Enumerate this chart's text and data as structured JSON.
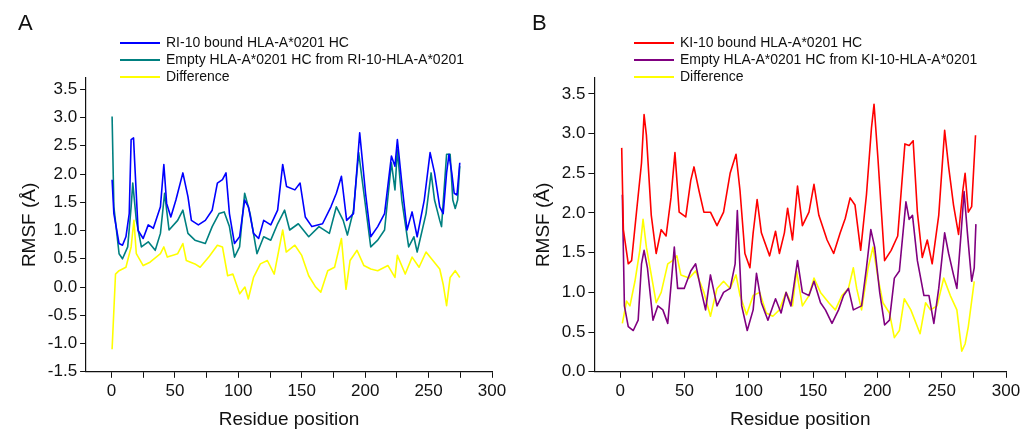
{
  "chart_data": [
    {
      "type": "line",
      "title": "A",
      "xlabel": "Residue position",
      "ylabel": "RMSF (Å)",
      "legend": "top",
      "marker": "none",
      "xlim": [
        -20,
        300
      ],
      "xticks": [
        0,
        {
          "value": 25,
          "label": null
        },
        50,
        {
          "value": 75,
          "label": null
        },
        100,
        {
          "value": 125,
          "label": null
        },
        150,
        {
          "value": 175,
          "label": null
        },
        200,
        {
          "value": 225,
          "label": null
        },
        250,
        {
          "value": 275,
          "label": null
        },
        300
      ],
      "ylim": [
        -1.5,
        3.7
      ],
      "yticks": [
        -1.5,
        {
          "value": -1,
          "label": "-1.0"
        },
        -0.5,
        {
          "value": 0,
          "label": "0.0"
        },
        0.5,
        {
          "value": 1,
          "label": "1.0"
        },
        1.5,
        {
          "value": 2,
          "label": "2.0"
        },
        2.5,
        {
          "value": 3,
          "label": "3.0"
        },
        3.5
      ],
      "series": [
        {
          "name": "RI-10 bound HLA-A*0201 HC",
          "color": "#0000ff",
          "x": [
            0.5,
            1.9,
            6,
            8.7,
            11.4,
            14,
            15.5,
            17.4,
            18.2,
            21,
            25,
            29,
            33,
            38.6,
            41.3,
            43.5,
            46.8,
            50.8,
            56.3,
            60.3,
            63,
            68.5,
            74,
            79.4,
            83.5,
            87.5,
            90.3,
            93,
            97,
            101,
            105,
            108,
            112,
            116,
            120,
            125.6,
            131,
            135,
            138,
            144.6,
            148.7,
            152.8,
            158,
            166.4,
            173,
            177.3,
            181.3,
            185.4,
            190.8,
            195.7,
            200.3,
            204.4,
            209.9,
            215.3,
            220.7,
            223.5,
            225.4,
            228.9,
            233,
            237,
            241,
            246.6,
            251.2,
            254.7,
            258.8,
            261.5,
            264.2,
            266.1,
            268.3,
            270.2,
            272.4,
            274.6
          ],
          "values": [
            1.9,
            1.3,
            0.77,
            0.74,
            0.89,
            1.3,
            2.61,
            2.64,
            2.26,
            1.0,
            0.86,
            1.1,
            1.04,
            1.42,
            2.17,
            1.48,
            1.24,
            1.54,
            2.02,
            1.6,
            1.18,
            1.1,
            1.18,
            1.36,
            1.84,
            1.9,
            2.02,
            1.3,
            0.77,
            0.89,
            1.54,
            1.42,
            0.95,
            0.86,
            1.18,
            1.1,
            1.36,
            2.17,
            1.78,
            1.72,
            1.84,
            1.24,
            1.07,
            1.12,
            1.42,
            1.66,
            1.96,
            1.18,
            1.3,
            2.73,
            1.66,
            0.89,
            1.07,
            1.3,
            2.32,
            2.14,
            2.61,
            1.84,
            1.01,
            1.33,
            0.89,
            1.54,
            2.38,
            2.02,
            1.42,
            1.3,
            2.02,
            2.35,
            2.02,
            1.66,
            1.63,
            2.2
          ]
        },
        {
          "name": "Empty HLA-A*0201 HC from RI-10-HLA-A*0201",
          "color": "#008080",
          "x": [
            0.5,
            1.9,
            6,
            8.7,
            12.8,
            15.5,
            16.8,
            19.6,
            23.6,
            29,
            34.5,
            38.6,
            41.9,
            45.4,
            52.2,
            56.3,
            60.3,
            65.8,
            74,
            79.4,
            84.8,
            88.9,
            93,
            97,
            101,
            105,
            109.3,
            114.7,
            120,
            125.6,
            131,
            136.5,
            140.5,
            147.3,
            155.5,
            163.6,
            171.8,
            177.3,
            182.7,
            186,
            190.8,
            194.9,
            199,
            204.4,
            209.9,
            215.3,
            220.7,
            223.5,
            225.4,
            228.9,
            234.3,
            238.4,
            241,
            248,
            252,
            254.7,
            258.8,
            260.2,
            264.2,
            267,
            269.1,
            271,
            272.9,
            274.6
          ],
          "values": [
            3.02,
            1.42,
            0.59,
            0.5,
            0.71,
            1.42,
            1.84,
            1.18,
            0.71,
            0.8,
            0.65,
            0.95,
            1.66,
            1.01,
            1.18,
            1.36,
            0.95,
            0.83,
            0.77,
            1.07,
            1.3,
            1.33,
            1.07,
            0.53,
            0.71,
            1.66,
            1.3,
            0.59,
            0.89,
            0.83,
            1.12,
            1.36,
            1.01,
            1.12,
            0.89,
            1.07,
            0.95,
            1.42,
            1.18,
            0.92,
            1.36,
            2.38,
            1.66,
            0.71,
            0.83,
            1.01,
            2.2,
            1.72,
            2.43,
            1.54,
            0.71,
            0.89,
            0.62,
            1.3,
            2.02,
            1.54,
            1.18,
            1.07,
            2.35,
            2.35,
            1.54,
            1.39,
            1.54,
            2.14
          ]
        },
        {
          "name": "Difference",
          "color": "#ffff00",
          "x": [
            0.5,
            3.2,
            6,
            11.4,
            15.5,
            17.7,
            19.6,
            25,
            30.4,
            38.6,
            41.3,
            44,
            52.2,
            56.3,
            59,
            65.8,
            69.9,
            76.7,
            83.5,
            87.5,
            91.6,
            95.7,
            101.1,
            105.2,
            107.9,
            112,
            117.4,
            122.9,
            128.3,
            135,
            137.8,
            144.6,
            150,
            155.5,
            161,
            165,
            170.5,
            175.9,
            181.3,
            184.9,
            188.1,
            193.6,
            199,
            204.4,
            209.9,
            218,
            223.5,
            225.4,
            231.6,
            237,
            242.5,
            248,
            253.4,
            258.8,
            261.5,
            264.2,
            267,
            271,
            274.6
          ],
          "values": [
            -1.1,
            0.23,
            0.29,
            0.35,
            0.71,
            1.18,
            0.59,
            0.38,
            0.44,
            0.59,
            0.71,
            0.53,
            0.59,
            0.77,
            0.47,
            0.41,
            0.35,
            0.53,
            0.74,
            0.71,
            0.2,
            0.23,
            -0.12,
            0,
            -0.21,
            0.17,
            0.41,
            0.47,
            0.23,
            1.01,
            0.62,
            0.74,
            0.56,
            0.2,
            0,
            -0.09,
            0.29,
            0.35,
            0.86,
            -0.04,
            0.47,
            0.65,
            0.38,
            0.32,
            0.29,
            0.38,
            0.17,
            0.56,
            0.23,
            0.53,
            0.35,
            0.62,
            0.47,
            0.32,
            0.05,
            -0.33,
            0.17,
            0.29,
            0.17
          ]
        }
      ]
    },
    {
      "type": "line",
      "title": "B",
      "xlabel": "Residue position",
      "ylabel": "RMSF (Å)",
      "legend": "top",
      "marker": "none",
      "xlim": [
        -20,
        300
      ],
      "xticks": [
        0,
        {
          "value": 25,
          "label": null
        },
        50,
        {
          "value": 75,
          "label": null
        },
        100,
        {
          "value": 125,
          "label": null
        },
        150,
        {
          "value": 175,
          "label": null
        },
        200,
        {
          "value": 225,
          "label": null
        },
        250,
        {
          "value": 275,
          "label": null
        },
        300
      ],
      "ylim": [
        0,
        3.7
      ],
      "yticks": [
        {
          "value": 0,
          "label": "0.0"
        },
        0.5,
        {
          "value": 1,
          "label": "1.0"
        },
        1.5,
        {
          "value": 2,
          "label": "2.0"
        },
        2.5,
        {
          "value": 3,
          "label": "3.0"
        },
        3.5
      ],
      "series": [
        {
          "name": "KI-10 bound HLA-A*0201 HC",
          "color": "#ff0000",
          "x": [
            1.2,
            2.5,
            6.3,
            8.9,
            12.7,
            16.6,
            18.6,
            20.4,
            24.2,
            28,
            31.9,
            35.7,
            39.5,
            42.6,
            45.9,
            51,
            54.9,
            57.4,
            61.3,
            65.1,
            70.2,
            75.3,
            80.4,
            85.5,
            90.1,
            93.2,
            97,
            100.9,
            103.4,
            106.5,
            109.8,
            116.2,
            120.8,
            123.8,
            127.7,
            130.2,
            134,
            137.9,
            141.7,
            146.8,
            150.7,
            154.5,
            160.9,
            166,
            171.1,
            175,
            178.8,
            182.6,
            187,
            191.5,
            195.4,
            197.4,
            200.5,
            205.6,
            210.7,
            215.8,
            221.4,
            224.7,
            227.8,
            231.1,
            234.9,
            238.8,
            242.6,
            247.7,
            252.3,
            255.4,
            259.2,
            263.1,
            266.4,
            268.2,
            270.7,
            273.3,
            276.3
          ],
          "values": [
            2.82,
            1.79,
            1.36,
            1.4,
            2.01,
            2.63,
            3.24,
            2.98,
            1.97,
            1.49,
            1.79,
            1.71,
            2.19,
            2.76,
            2.01,
            1.95,
            2.41,
            2.58,
            2.28,
            2.01,
            2.01,
            1.84,
            2.01,
            2.5,
            2.74,
            2.28,
            1.49,
            1.31,
            1.75,
            2.17,
            1.75,
            1.46,
            1.77,
            1.49,
            1.75,
            2.06,
            1.66,
            2.34,
            1.84,
            2.01,
            2.36,
            1.97,
            1.66,
            1.49,
            1.75,
            1.93,
            2.19,
            2.1,
            1.53,
            2.23,
            3.07,
            3.37,
            2.67,
            1.4,
            1.53,
            1.71,
            2.87,
            2.85,
            2.91,
            2.01,
            1.44,
            1.66,
            1.36,
            1.97,
            3.04,
            2.58,
            2.1,
            1.73,
            2.28,
            2.5,
            2.01,
            2.08,
            2.98
          ]
        },
        {
          "name": "Empty HLA-A*0201 HC from KI-10-HLA-A*0201",
          "color": "#800080",
          "x": [
            1.7,
            3.3,
            6.3,
            10.2,
            14,
            16.6,
            18.6,
            21.2,
            25.5,
            29.3,
            33.2,
            37,
            42.1,
            44.7,
            49.8,
            54.9,
            58.7,
            62.6,
            66.4,
            70.2,
            75.3,
            80.4,
            85.5,
            89.4,
            91.1,
            94.5,
            98.8,
            103.4,
            106,
            109.8,
            114.9,
            120.8,
            125.1,
            129,
            132.8,
            137.9,
            141.7,
            146.8,
            150.7,
            155.8,
            159.6,
            164.7,
            169.8,
            173.7,
            177.5,
            181.3,
            187.7,
            191.5,
            194.9,
            197.9,
            201.8,
            205.6,
            209.4,
            213.2,
            217.1,
            222.2,
            224.7,
            227.3,
            231.1,
            236.2,
            240.1,
            243.9,
            247.7,
            252.3,
            255.4,
            259.2,
            261.8,
            265.1,
            267.4,
            270,
            273.3,
            275.3,
            276.6
          ],
          "values": [
            2.23,
            0.83,
            0.57,
            0.52,
            0.65,
            1.36,
            1.53,
            1.31,
            0.65,
            0.83,
            0.78,
            0.61,
            1.57,
            1.05,
            1.05,
            1.27,
            1.36,
            1.05,
            0.78,
            1.22,
            0.83,
            1.0,
            1.05,
            1.36,
            2.03,
            0.83,
            0.52,
            0.78,
            1.24,
            0.87,
            0.65,
            0.92,
            0.74,
            1.0,
            0.83,
            1.4,
            1.0,
            0.96,
            1.14,
            0.87,
            0.78,
            0.61,
            0.78,
            0.96,
            1.05,
            0.78,
            0.83,
            1.31,
            1.79,
            1.57,
            1.0,
            0.59,
            0.65,
            1.18,
            1.27,
            2.14,
            1.92,
            1.97,
            1.4,
            0.96,
            0.96,
            0.61,
            1.05,
            1.75,
            1.49,
            1.22,
            1.05,
            1.75,
            2.27,
            1.75,
            1.14,
            1.31,
            1.86
          ]
        },
        {
          "name": "Difference",
          "color": "#ffff00",
          "x": [
            1.7,
            5,
            7.6,
            11.5,
            15.3,
            17.8,
            20.4,
            24.2,
            28,
            31.9,
            37,
            40.8,
            44.1,
            47.2,
            53.6,
            58.7,
            65.1,
            70.2,
            75.3,
            80.4,
            85.5,
            90.1,
            93.2,
            98.3,
            103.4,
            108.5,
            113.6,
            118.7,
            123.8,
            129,
            134,
            137.1,
            141.7,
            146.8,
            150.7,
            155.8,
            162.2,
            167.3,
            172.4,
            177.5,
            181.3,
            183.9,
            187.7,
            192.8,
            196.6,
            200.5,
            204.3,
            209.4,
            213.2,
            217.1,
            220.9,
            226,
            233.2,
            237.5,
            241.3,
            246.4,
            251.6,
            256.7,
            261.8,
            265.6,
            268.2,
            270.7,
            275.3
          ],
          "values": [
            0.61,
            0.89,
            0.83,
            1.14,
            1.53,
            1.92,
            1.57,
            1.22,
            0.87,
            1.0,
            1.36,
            1.4,
            1.46,
            1.22,
            1.18,
            1.27,
            1.0,
            0.7,
            1.05,
            1.14,
            1.05,
            1.22,
            0.96,
            0.72,
            0.96,
            1.0,
            0.74,
            0.7,
            0.78,
            1.0,
            0.83,
            1.27,
            0.83,
            0.96,
            1.18,
            1.0,
            0.87,
            0.78,
            0.96,
            1.05,
            1.31,
            1.05,
            0.78,
            1.31,
            1.57,
            1.18,
            0.87,
            0.74,
            0.43,
            0.52,
            0.92,
            0.78,
            0.48,
            0.87,
            0.78,
            0.83,
            1.18,
            0.96,
            0.78,
            0.26,
            0.35,
            0.57,
            1.14
          ]
        }
      ]
    }
  ]
}
